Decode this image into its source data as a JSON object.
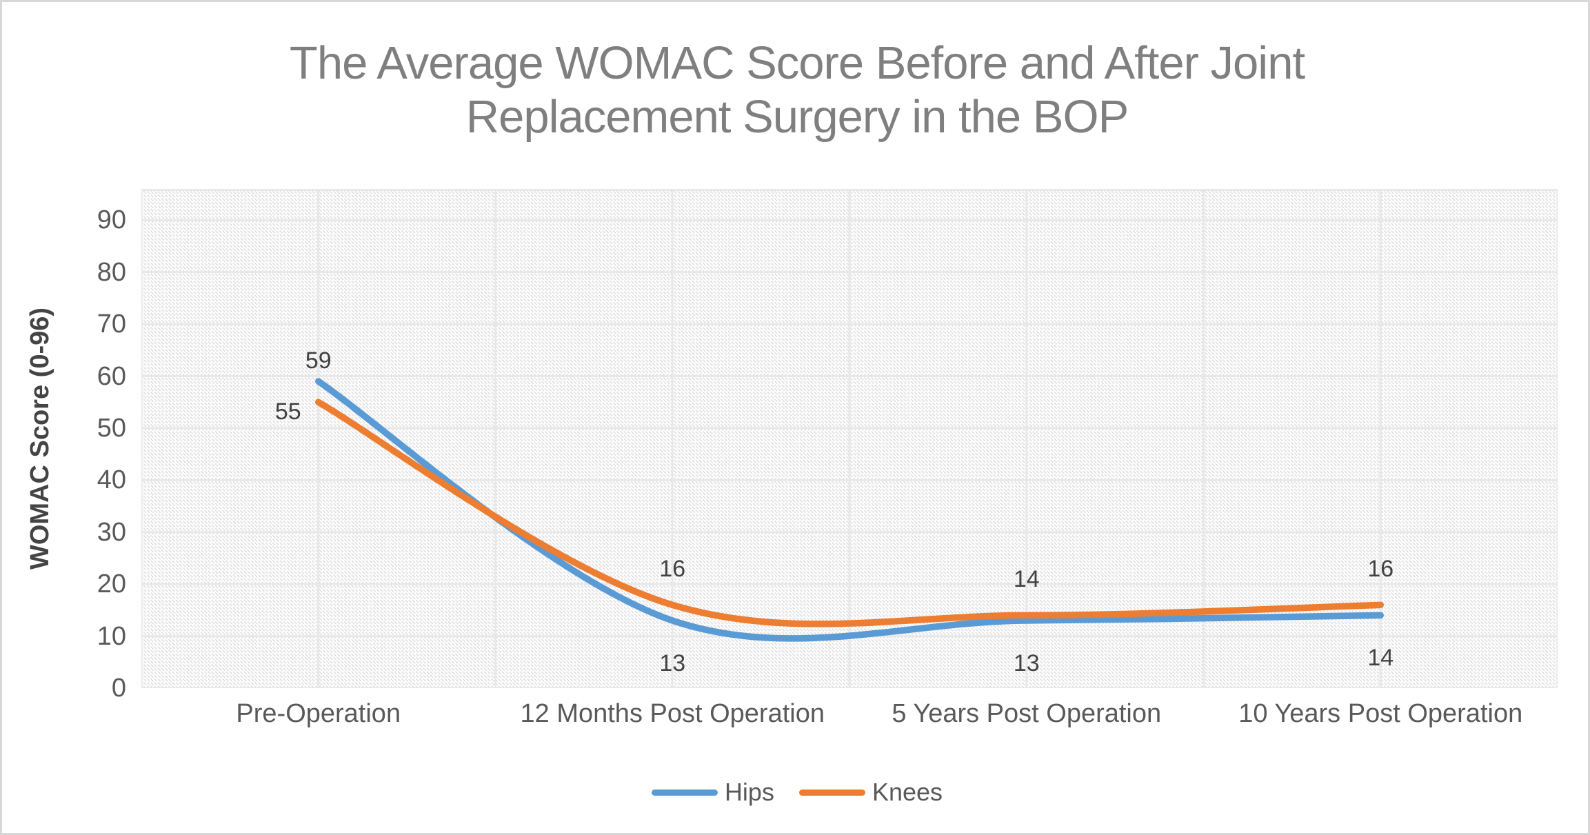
{
  "frame": {
    "border_color": "#d7d7d7",
    "background": "#ffffff"
  },
  "title": {
    "lines": [
      "The Average WOMAC Score Before and After Joint",
      "Replacement Surgery in the BOP"
    ],
    "color": "#7f7f7f"
  },
  "y_axis": {
    "title": "WOMAC Score (0-96)"
  },
  "legend": {
    "items": [
      {
        "label": "Hips",
        "color": "#5b9bd5"
      },
      {
        "label": "Knees",
        "color": "#ed7d31"
      }
    ]
  },
  "chart_data": {
    "type": "line",
    "title": "The Average WOMAC Score Before and After Joint Replacement Surgery in the BOP",
    "categories": [
      "Pre-Operation",
      "12 Months Post Operation",
      "5 Years Post Operation",
      "10 Years Post Operation"
    ],
    "series": [
      {
        "name": "Hips",
        "color": "#5b9bd5",
        "values": [
          59,
          13,
          13,
          14
        ],
        "label_offsets": [
          [
            0,
            -30
          ],
          [
            0,
            62
          ],
          [
            0,
            62
          ],
          [
            0,
            62
          ]
        ]
      },
      {
        "name": "Knees",
        "color": "#ed7d31",
        "values": [
          55,
          16,
          14,
          16
        ],
        "label_offsets": [
          [
            -44,
            14
          ],
          [
            0,
            -52
          ],
          [
            0,
            -52
          ],
          [
            0,
            -52
          ]
        ]
      }
    ],
    "xlabel": "",
    "ylabel": "WOMAC Score (0-96)",
    "ylim": [
      0,
      96
    ],
    "y_major_unit": 10,
    "grid": true,
    "gridline_color": "#e8e8e8",
    "plot_background": "diagonal-hatch",
    "hatch_color": "#dfdfdf",
    "smoothed_lines": true,
    "line_width": 9.5,
    "data_labels": true,
    "legend_position": "bottom"
  }
}
